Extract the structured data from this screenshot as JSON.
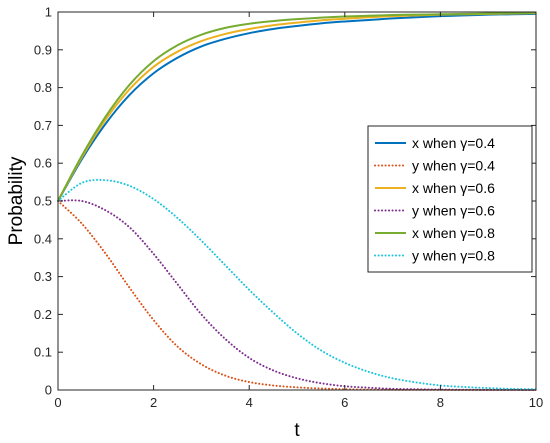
{
  "chart_data": {
    "type": "line",
    "title": "",
    "xlabel": "t",
    "ylabel": "Probability",
    "xlim": [
      0,
      10
    ],
    "ylim": [
      0,
      1
    ],
    "xticks": [
      "0",
      "2",
      "4",
      "6",
      "8",
      "10"
    ],
    "yticks": [
      "0",
      "0.1",
      "0.2",
      "0.3",
      "0.4",
      "0.5",
      "0.6",
      "0.7",
      "0.8",
      "0.9",
      "1"
    ],
    "grid": false,
    "legend_position": "right",
    "x": [
      0,
      0.5,
      1,
      1.5,
      2,
      2.5,
      3,
      3.5,
      4,
      4.5,
      5,
      5.5,
      6,
      6.5,
      7,
      7.5,
      8,
      8.5,
      9,
      9.5,
      10
    ],
    "series": [
      {
        "name": "x when γ=0.4",
        "color": "#0072BD",
        "style": "solid",
        "values": [
          0.5,
          0.611,
          0.705,
          0.781,
          0.838,
          0.879,
          0.909,
          0.929,
          0.944,
          0.955,
          0.963,
          0.97,
          0.975,
          0.979,
          0.983,
          0.986,
          0.989,
          0.991,
          0.993,
          0.994,
          0.995
        ]
      },
      {
        "name": "y when γ=0.4",
        "color": "#D95319",
        "style": "dotted",
        "values": [
          0.5,
          0.44,
          0.36,
          0.27,
          0.185,
          0.115,
          0.068,
          0.038,
          0.021,
          0.012,
          0.007,
          0.004,
          0.002,
          0.001,
          0.0005,
          0.0003,
          0.0002,
          0.0001,
          0.0001,
          0.0,
          0.0
        ]
      },
      {
        "name": "x when γ=0.6",
        "color": "#EDB120",
        "style": "solid",
        "values": [
          0.5,
          0.616,
          0.716,
          0.796,
          0.855,
          0.895,
          0.923,
          0.942,
          0.955,
          0.965,
          0.972,
          0.978,
          0.982,
          0.986,
          0.989,
          0.991,
          0.993,
          0.994,
          0.995,
          0.996,
          0.997
        ]
      },
      {
        "name": "y when γ=0.6",
        "color": "#7E2F8E",
        "style": "dotted",
        "values": [
          0.5,
          0.5,
          0.475,
          0.43,
          0.36,
          0.28,
          0.2,
          0.135,
          0.085,
          0.052,
          0.031,
          0.018,
          0.01,
          0.006,
          0.003,
          0.002,
          0.001,
          0.0007,
          0.0004,
          0.0002,
          0.0001
        ]
      },
      {
        "name": "x when γ=0.8",
        "color": "#77AC30",
        "style": "solid",
        "values": [
          0.5,
          0.62,
          0.724,
          0.808,
          0.87,
          0.912,
          0.94,
          0.958,
          0.969,
          0.976,
          0.981,
          0.985,
          0.988,
          0.99,
          0.992,
          0.993,
          0.994,
          0.995,
          0.996,
          0.997,
          0.998
        ]
      },
      {
        "name": "y when γ=0.8",
        "color": "#1CC5DD",
        "style": "dotted",
        "values": [
          0.5,
          0.548,
          0.555,
          0.54,
          0.505,
          0.455,
          0.395,
          0.33,
          0.265,
          0.205,
          0.15,
          0.105,
          0.072,
          0.048,
          0.031,
          0.02,
          0.012,
          0.008,
          0.005,
          0.003,
          0.002
        ]
      }
    ]
  }
}
